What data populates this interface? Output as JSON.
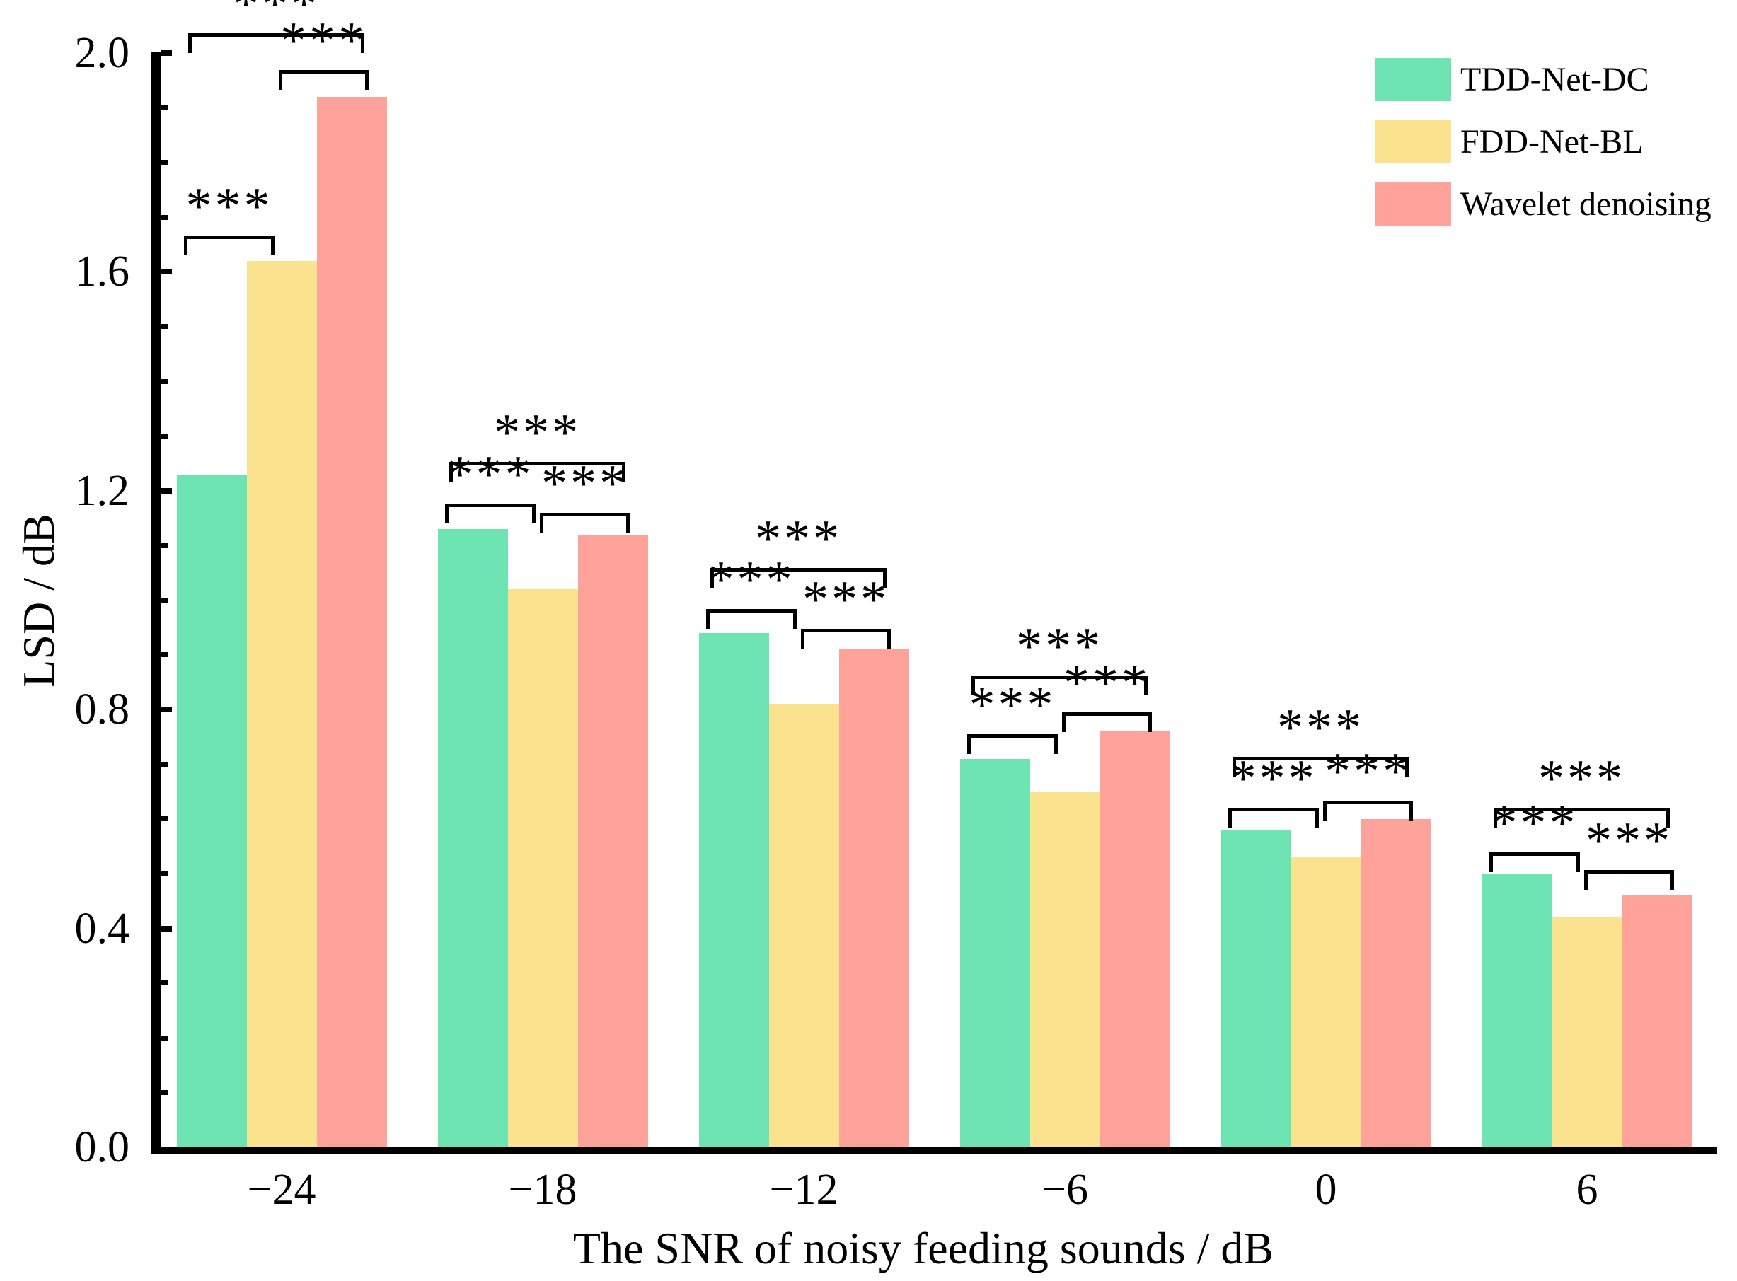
{
  "chart_data": {
    "type": "bar",
    "categories": [
      "−24",
      "−18",
      "−12",
      "−6",
      "0",
      "6"
    ],
    "series": [
      {
        "name": "TDD-Net-DC",
        "color": "#6FE4B3",
        "values": [
          1.23,
          1.13,
          0.94,
          0.71,
          0.58,
          0.5
        ]
      },
      {
        "name": "FDD-Net-BL",
        "color": "#FAE28F",
        "values": [
          1.62,
          1.02,
          0.81,
          0.65,
          0.53,
          0.42
        ]
      },
      {
        "name": "Wavelet denoising",
        "color": "#FFA29A",
        "values": [
          1.92,
          1.12,
          0.91,
          0.76,
          0.6,
          0.46
        ]
      }
    ],
    "xlabel": "The SNR of noisy feeding sounds / dB",
    "ylabel": "LSD / dB",
    "ylim": [
      0.0,
      2.0
    ],
    "ytick_labels": [
      "0.0",
      "0.4",
      "0.8",
      "1.2",
      "1.6",
      "2.0"
    ],
    "ytick_values": [
      0.0,
      0.4,
      0.8,
      1.2,
      1.6,
      2.0
    ],
    "yminor_step": 0.1,
    "grid": false,
    "legend_position": "top-right",
    "significance": [
      {
        "group_index": 0,
        "between": [
          "TDD-Net-DC",
          "FDD-Net-BL"
        ],
        "label": "***",
        "line_y": 1.666
      },
      {
        "group_index": 0,
        "between": [
          "FDD-Net-BL",
          "Wavelet denoising"
        ],
        "label": "***",
        "line_y": 1.969
      },
      {
        "group_index": 0,
        "between": [
          "TDD-Net-DC",
          "Wavelet denoising"
        ],
        "label": "***",
        "line_y": 2.036
      },
      {
        "group_index": 1,
        "between": [
          "TDD-Net-DC",
          "FDD-Net-BL"
        ],
        "label": "***",
        "line_y": 1.176
      },
      {
        "group_index": 1,
        "between": [
          "FDD-Net-BL",
          "Wavelet denoising"
        ],
        "label": "***",
        "line_y": 1.16
      },
      {
        "group_index": 1,
        "between": [
          "TDD-Net-DC",
          "Wavelet denoising"
        ],
        "label": "***",
        "line_y": 1.253
      },
      {
        "group_index": 2,
        "between": [
          "TDD-Net-DC",
          "FDD-Net-BL"
        ],
        "label": "***",
        "line_y": 0.984
      },
      {
        "group_index": 2,
        "between": [
          "FDD-Net-BL",
          "Wavelet denoising"
        ],
        "label": "***",
        "line_y": 0.948
      },
      {
        "group_index": 2,
        "between": [
          "TDD-Net-DC",
          "Wavelet denoising"
        ],
        "label": "***",
        "line_y": 1.059
      },
      {
        "group_index": 3,
        "between": [
          "TDD-Net-DC",
          "FDD-Net-BL"
        ],
        "label": "***",
        "line_y": 0.755
      },
      {
        "group_index": 3,
        "between": [
          "FDD-Net-BL",
          "Wavelet denoising"
        ],
        "label": "***",
        "line_y": 0.795
      },
      {
        "group_index": 3,
        "between": [
          "TDD-Net-DC",
          "Wavelet denoising"
        ],
        "label": "***",
        "line_y": 0.862
      },
      {
        "group_index": 4,
        "between": [
          "TDD-Net-DC",
          "FDD-Net-BL"
        ],
        "label": "***",
        "line_y": 0.621
      },
      {
        "group_index": 4,
        "between": [
          "FDD-Net-BL",
          "Wavelet denoising"
        ],
        "label": "***",
        "line_y": 0.633
      },
      {
        "group_index": 4,
        "between": [
          "TDD-Net-DC",
          "Wavelet denoising"
        ],
        "label": "***",
        "line_y": 0.714
      },
      {
        "group_index": 5,
        "between": [
          "TDD-Net-DC",
          "FDD-Net-BL"
        ],
        "label": "***",
        "line_y": 0.539
      },
      {
        "group_index": 5,
        "between": [
          "FDD-Net-BL",
          "Wavelet denoising"
        ],
        "label": "***",
        "line_y": 0.507
      },
      {
        "group_index": 5,
        "between": [
          "TDD-Net-DC",
          "Wavelet denoising"
        ],
        "label": "***",
        "line_y": 0.621
      }
    ]
  }
}
